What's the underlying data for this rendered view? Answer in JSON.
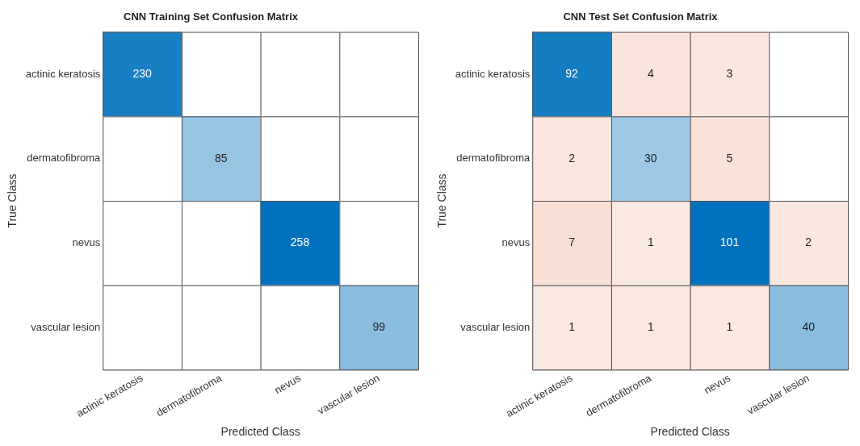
{
  "chart_data": [
    {
      "type": "heatmap",
      "title": "CNN Training Set Confusion Matrix",
      "xlabel": "Predicted Class",
      "ylabel": "True Class",
      "data_labels": true,
      "categories": [
        "actinic keratosis",
        "dermatofibroma",
        "nevus",
        "vascular lesion"
      ],
      "y_categories": [
        "actinic keratosis",
        "dermatofibroma",
        "nevus",
        "vascular lesion"
      ],
      "cells": [
        [
          230,
          null,
          null,
          null
        ],
        [
          null,
          85,
          null,
          null
        ],
        [
          null,
          null,
          258,
          null
        ],
        [
          null,
          null,
          null,
          99
        ]
      ]
    },
    {
      "type": "heatmap",
      "title": "CNN Test Set Confusion Matrix",
      "xlabel": "Predicted Class",
      "ylabel": "True Class",
      "data_labels": true,
      "categories": [
        "actinic keratosis",
        "dermatofibroma",
        "nevus",
        "vascular lesion"
      ],
      "y_categories": [
        "actinic keratosis",
        "dermatofibroma",
        "nevus",
        "vascular lesion"
      ],
      "cells": [
        [
          92,
          4,
          3,
          null
        ],
        [
          2,
          30,
          5,
          null
        ],
        [
          7,
          1,
          101,
          2
        ],
        [
          1,
          1,
          1,
          40
        ]
      ]
    }
  ]
}
